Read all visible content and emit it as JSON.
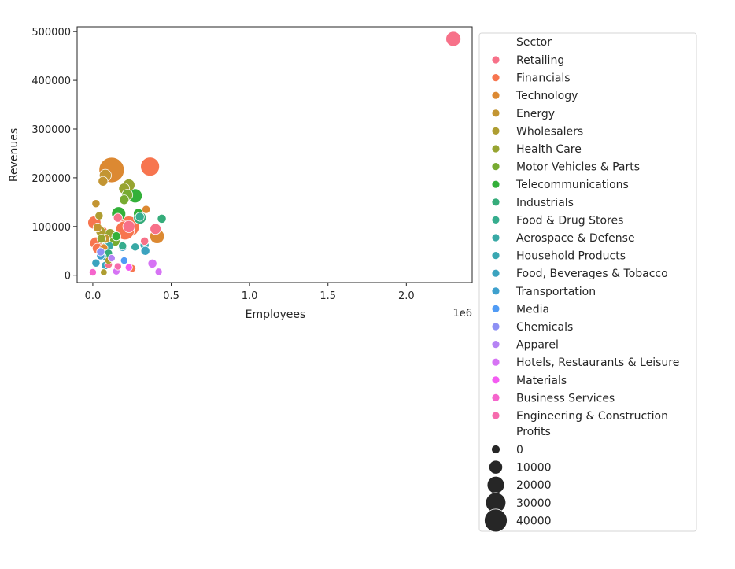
{
  "chart_data": {
    "type": "scatter",
    "title": "",
    "xlabel": "Employees",
    "ylabel": "Revenues",
    "x_offset_label": "1e6",
    "xlim": [
      -100000,
      2420000
    ],
    "ylim": [
      -15000,
      510000
    ],
    "x_ticks": [
      0,
      500000,
      1000000,
      1500000,
      2000000
    ],
    "x_tick_labels": [
      "0.0",
      "0.5",
      "1.0",
      "1.5",
      "2.0"
    ],
    "y_ticks": [
      0,
      100000,
      200000,
      300000,
      400000,
      500000
    ],
    "y_tick_labels": [
      "0",
      "100000",
      "200000",
      "300000",
      "400000",
      "500000"
    ],
    "grid": false,
    "legend_placement": "outside-right",
    "legend_hue_title": "Sector",
    "legend_size_title": "Profits",
    "sectors": [
      {
        "name": "Retailing",
        "color": "#f77189"
      },
      {
        "name": "Financials",
        "color": "#f7754f"
      },
      {
        "name": "Technology",
        "color": "#dc8932"
      },
      {
        "name": "Energy",
        "color": "#c39532"
      },
      {
        "name": "Wholesalers",
        "color": "#ae9d31"
      },
      {
        "name": "Health Care",
        "color": "#97a431"
      },
      {
        "name": "Motor Vehicles & Parts",
        "color": "#77ab31"
      },
      {
        "name": "Telecommunications",
        "color": "#33b039"
      },
      {
        "name": "Industrials",
        "color": "#35ac7a"
      },
      {
        "name": "Food & Drug Stores",
        "color": "#36ad8e"
      },
      {
        "name": "Aerospace & Defense",
        "color": "#38a9a5"
      },
      {
        "name": "Household Products",
        "color": "#39a7b1"
      },
      {
        "name": "Food, Beverages & Tobacco",
        "color": "#3ba3bf"
      },
      {
        "name": "Transportation",
        "color": "#3ea0cd"
      },
      {
        "name": "Media",
        "color": "#509bf5"
      },
      {
        "name": "Chemicals",
        "color": "#8d90f4"
      },
      {
        "name": "Apparel",
        "color": "#b583f4"
      },
      {
        "name": "Hotels, Restaurants & Leisure",
        "color": "#d673f4"
      },
      {
        "name": "Materials",
        "color": "#f45cf2"
      },
      {
        "name": "Business Services",
        "color": "#f565cc"
      },
      {
        "name": "Engineering & Construction",
        "color": "#f66bad"
      }
    ],
    "size_legend": [
      {
        "label": "0",
        "value": 0
      },
      {
        "label": "10000",
        "value": 10000
      },
      {
        "label": "20000",
        "value": 20000
      },
      {
        "label": "30000",
        "value": 30000
      },
      {
        "label": "40000",
        "value": 40000
      }
    ],
    "points": [
      {
        "sector": 0,
        "x": 2300000,
        "y": 485000,
        "p": 14000
      },
      {
        "sector": 0,
        "x": 160000,
        "y": 118000,
        "p": 3000
      },
      {
        "sector": 0,
        "x": 400000,
        "y": 95000,
        "p": 6000
      },
      {
        "sector": 0,
        "x": 230000,
        "y": 100000,
        "p": 8000
      },
      {
        "sector": 0,
        "x": 330000,
        "y": 70000,
        "p": 2000
      },
      {
        "sector": 0,
        "x": 100000,
        "y": 22000,
        "p": 1500
      },
      {
        "sector": 1,
        "x": 365000,
        "y": 223000,
        "p": 24000
      },
      {
        "sector": 1,
        "x": 230000,
        "y": 100000,
        "p": 30000
      },
      {
        "sector": 1,
        "x": 205000,
        "y": 92000,
        "p": 24000
      },
      {
        "sector": 1,
        "x": 10000,
        "y": 108000,
        "p": 10000
      },
      {
        "sector": 1,
        "x": 20000,
        "y": 66000,
        "p": 8000
      },
      {
        "sector": 1,
        "x": 60000,
        "y": 90000,
        "p": 5000
      },
      {
        "sector": 1,
        "x": 30000,
        "y": 55000,
        "p": 5000
      },
      {
        "sector": 1,
        "x": 250000,
        "y": 14000,
        "p": 1500
      },
      {
        "sector": 2,
        "x": 120000,
        "y": 216000,
        "p": 45000
      },
      {
        "sector": 2,
        "x": 410000,
        "y": 80000,
        "p": 13000
      },
      {
        "sector": 2,
        "x": 340000,
        "y": 135000,
        "p": 2000
      },
      {
        "sector": 2,
        "x": 70000,
        "y": 56000,
        "p": 2000
      },
      {
        "sector": 3,
        "x": 80000,
        "y": 205000,
        "p": 8000
      },
      {
        "sector": 3,
        "x": 65000,
        "y": 193000,
        "p": 4000
      },
      {
        "sector": 3,
        "x": 20000,
        "y": 147000,
        "p": 2000
      },
      {
        "sector": 3,
        "x": 30000,
        "y": 98000,
        "p": 3000
      },
      {
        "sector": 3,
        "x": 80000,
        "y": 75000,
        "p": 3000
      },
      {
        "sector": 4,
        "x": 40000,
        "y": 122000,
        "p": 2000
      },
      {
        "sector": 4,
        "x": 50000,
        "y": 90000,
        "p": 4000
      },
      {
        "sector": 4,
        "x": 100000,
        "y": 30000,
        "p": 1000
      },
      {
        "sector": 4,
        "x": 70000,
        "y": 6000,
        "p": 500
      },
      {
        "sector": 5,
        "x": 230000,
        "y": 185000,
        "p": 8000
      },
      {
        "sector": 5,
        "x": 200000,
        "y": 178000,
        "p": 6000
      },
      {
        "sector": 5,
        "x": 110000,
        "y": 85000,
        "p": 5000
      },
      {
        "sector": 5,
        "x": 55000,
        "y": 75000,
        "p": 3000
      },
      {
        "sector": 6,
        "x": 220000,
        "y": 165000,
        "p": 6000
      },
      {
        "sector": 6,
        "x": 200000,
        "y": 155000,
        "p": 4000
      },
      {
        "sector": 6,
        "x": 140000,
        "y": 70000,
        "p": 5000
      },
      {
        "sector": 7,
        "x": 270000,
        "y": 163000,
        "p": 12000
      },
      {
        "sector": 7,
        "x": 165000,
        "y": 126000,
        "p": 12000
      },
      {
        "sector": 7,
        "x": 290000,
        "y": 127000,
        "p": 4000
      },
      {
        "sector": 7,
        "x": 150000,
        "y": 80000,
        "p": 3000
      },
      {
        "sector": 8,
        "x": 440000,
        "y": 116000,
        "p": 3000
      },
      {
        "sector": 8,
        "x": 300000,
        "y": 118000,
        "p": 9000
      },
      {
        "sector": 8,
        "x": 100000,
        "y": 45000,
        "p": 2000
      },
      {
        "sector": 9,
        "x": 300000,
        "y": 120000,
        "p": 3000
      },
      {
        "sector": 9,
        "x": 190000,
        "y": 60000,
        "p": 2000
      },
      {
        "sector": 10,
        "x": 270000,
        "y": 58000,
        "p": 2000
      },
      {
        "sector": 10,
        "x": 100000,
        "y": 60000,
        "p": 4000
      },
      {
        "sector": 11,
        "x": 330000,
        "y": 62000,
        "p": 3000
      },
      {
        "sector": 11,
        "x": 100000,
        "y": 72000,
        "p": 10000
      },
      {
        "sector": 11,
        "x": 60000,
        "y": 38000,
        "p": 2000
      },
      {
        "sector": 12,
        "x": 335000,
        "y": 50000,
        "p": 3000
      },
      {
        "sector": 12,
        "x": 20000,
        "y": 25000,
        "p": 2000
      },
      {
        "sector": 12,
        "x": 80000,
        "y": 20000,
        "p": 2000
      },
      {
        "sector": 13,
        "x": 190000,
        "y": 58000,
        "p": 3000
      },
      {
        "sector": 13,
        "x": 50000,
        "y": 40000,
        "p": 2000
      },
      {
        "sector": 14,
        "x": 200000,
        "y": 30000,
        "p": 1000
      },
      {
        "sector": 15,
        "x": 50000,
        "y": 48000,
        "p": 2000
      },
      {
        "sector": 16,
        "x": 120000,
        "y": 35000,
        "p": 1000
      },
      {
        "sector": 17,
        "x": 380000,
        "y": 24000,
        "p": 3000
      },
      {
        "sector": 17,
        "x": 420000,
        "y": 7000,
        "p": 1000
      },
      {
        "sector": 17,
        "x": 150000,
        "y": 8000,
        "p": 1000
      },
      {
        "sector": 18,
        "x": 230000,
        "y": 16000,
        "p": 1000
      },
      {
        "sector": 19,
        "x": 0,
        "y": 6000,
        "p": 1000
      },
      {
        "sector": 20,
        "x": 160000,
        "y": 18000,
        "p": 1000
      }
    ]
  }
}
